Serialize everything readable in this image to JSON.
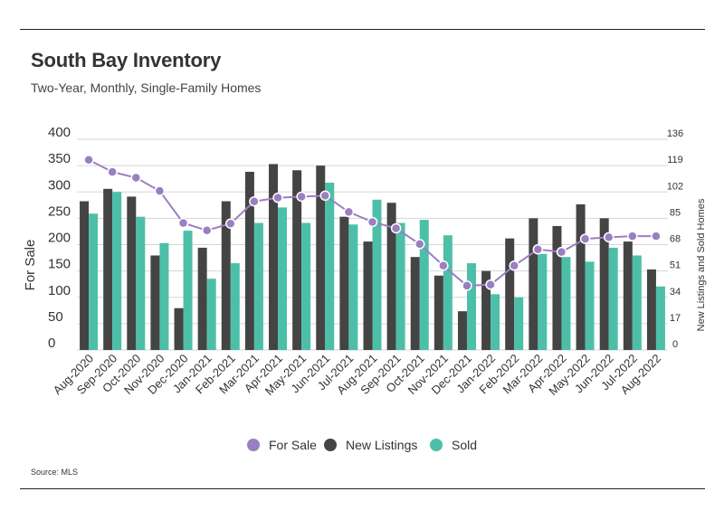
{
  "header": {
    "title": "South Bay Inventory",
    "subtitle": "Two-Year, Monthly, Single-Family Homes"
  },
  "footer": {
    "source": "Source:  MLS"
  },
  "colors": {
    "for_sale": "#9a7fc0",
    "new_listings": "#444444",
    "sold": "#4dbfa8"
  },
  "chart_data": {
    "type": "bar",
    "title": "South Bay Inventory",
    "subtitle": "Two-Year, Monthly, Single-Family Homes",
    "ylabel": "For Sale",
    "y2label": "New Listings and Sold Homes",
    "ylim": [
      0,
      400
    ],
    "yticks": [
      0,
      50,
      100,
      150,
      200,
      250,
      300,
      350,
      400
    ],
    "y2lim": [
      0,
      136
    ],
    "y2ticks": [
      0,
      17,
      34,
      51,
      68,
      85,
      102,
      119,
      136
    ],
    "grid": true,
    "legend": "bottom-center",
    "categories": [
      "Aug-2020",
      "Sep-2020",
      "Oct-2020",
      "Nov-2020",
      "Dec-2020",
      "Jan-2021",
      "Feb-2021",
      "Mar-2021",
      "Apr-2021",
      "May-2021",
      "Jun-2021",
      "Jul-2021",
      "Aug-2021",
      "Sep-2021",
      "Oct-2021",
      "Nov-2021",
      "Dec-2021",
      "Jan-2022",
      "Feb-2022",
      "Mar-2022",
      "Apr-2022",
      "May-2022",
      "Jun-2022",
      "Jul-2022",
      "Aug-2022"
    ],
    "series": [
      {
        "name": "For Sale",
        "type": "line",
        "axis": "left",
        "values": [
          361,
          338,
          327,
          302,
          241,
          227,
          240,
          282,
          289,
          291,
          293,
          262,
          243,
          231,
          201,
          160,
          122,
          124,
          160,
          191,
          186,
          211,
          214,
          216,
          216
        ]
      },
      {
        "name": "New Listings",
        "type": "bar",
        "axis": "right",
        "values": [
          96,
          104,
          99,
          61,
          27,
          66,
          96,
          115,
          120,
          116,
          119,
          86,
          70,
          95,
          60,
          48,
          25,
          51,
          72,
          85,
          80,
          94,
          85,
          70,
          52
        ]
      },
      {
        "name": "Sold",
        "type": "bar",
        "axis": "right",
        "values": [
          88,
          102,
          86,
          69,
          77,
          46,
          56,
          82,
          92,
          82,
          108,
          81,
          97,
          82,
          84,
          74,
          56,
          36,
          34,
          62,
          60,
          57,
          66,
          61,
          41
        ]
      }
    ]
  }
}
